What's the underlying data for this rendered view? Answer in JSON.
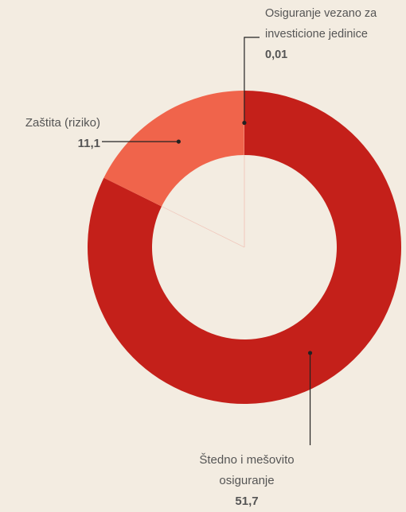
{
  "chart_data": {
    "type": "donut",
    "categories": [
      "Štedno i mešovito osiguranje",
      "Zaštita (riziko)",
      "Osiguranje vezano za investicione jedinice"
    ],
    "values": [
      51.7,
      11.1,
      0.01
    ],
    "value_labels": [
      "51,7",
      "11,1",
      "0,01"
    ],
    "colors": [
      "#c4201a",
      "#f0644b",
      "#f7efe6"
    ]
  }
}
